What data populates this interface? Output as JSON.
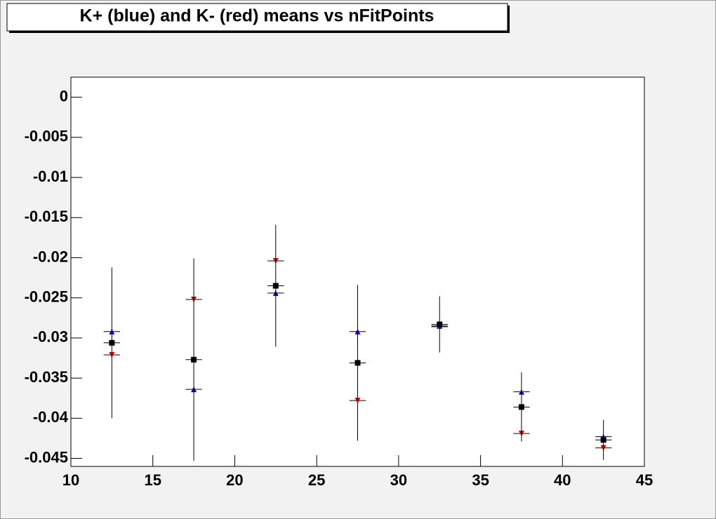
{
  "chart_data": {
    "type": "scatter",
    "title": "K+ (blue) and K- (red) means vs nFitPoints",
    "x": [
      12.5,
      17.5,
      22.5,
      27.5,
      32.5,
      37.5,
      42.5
    ],
    "xerr": [
      0.5,
      0.5,
      0.5,
      0.5,
      0.5,
      0.5,
      0.5
    ],
    "series": [
      {
        "color": "#0000cc",
        "marker": "triangle-up",
        "values": [
          -0.0292,
          -0.0364,
          -0.0244,
          -0.0292,
          -0.0285,
          -0.0367,
          -0.0423
        ]
      },
      {
        "color": "#cc0000",
        "marker": "triangle-down",
        "values": [
          -0.0321,
          -0.0252,
          -0.0204,
          -0.0378,
          -0.0286,
          -0.0419,
          -0.0437
        ]
      },
      {
        "color": "#000000",
        "marker": "square",
        "values": [
          -0.0306,
          -0.0327,
          -0.0235,
          -0.0331,
          -0.0283,
          -0.0386,
          -0.0427
        ],
        "yerr": [
          0.0094,
          0.0126,
          0.0076,
          0.0097,
          0.0035,
          0.0043,
          0.0025
        ]
      }
    ],
    "xlim": [
      10,
      45
    ],
    "xticks": [
      10,
      15,
      20,
      25,
      30,
      35,
      40,
      45
    ],
    "ylim": [
      -0.046,
      0.0025
    ],
    "yticks": [
      0,
      -0.005,
      -0.01,
      -0.015,
      -0.02,
      -0.025,
      -0.03,
      -0.035,
      -0.04,
      -0.045
    ]
  }
}
